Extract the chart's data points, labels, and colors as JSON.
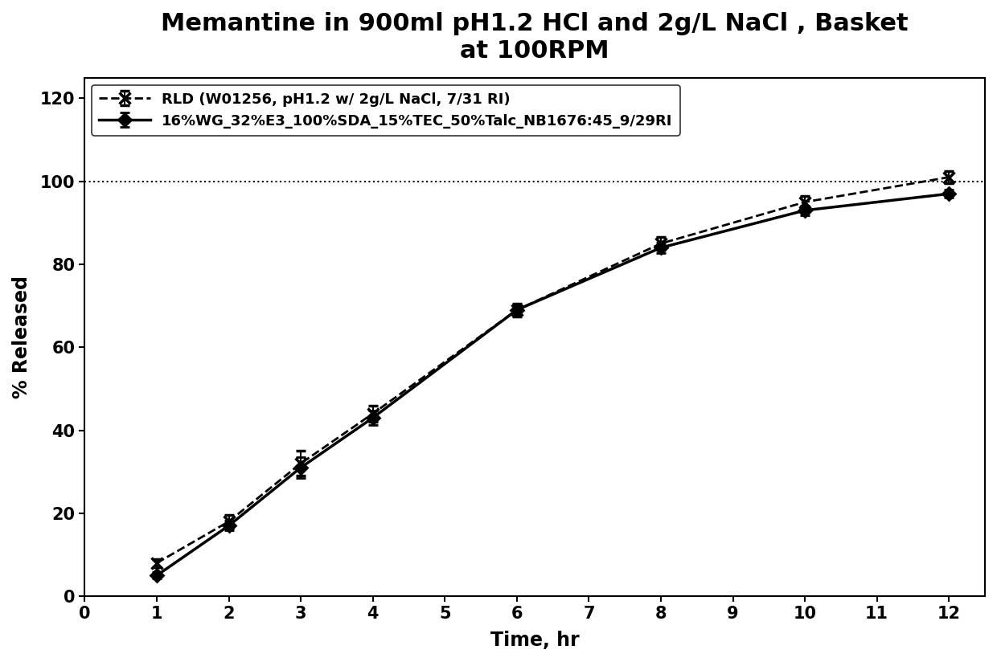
{
  "title": "Memantine in 900ml pH1.2 HCl and 2g/L NaCl , Basket\nat 100RPM",
  "xlabel": "Time, hr",
  "ylabel": "% Released",
  "xlim": [
    0,
    12.5
  ],
  "ylim": [
    0,
    125
  ],
  "xticks": [
    0,
    1,
    2,
    3,
    4,
    5,
    6,
    7,
    8,
    9,
    10,
    11,
    12
  ],
  "yticks": [
    0,
    20,
    40,
    60,
    80,
    100,
    120
  ],
  "series1": {
    "label": "RLD (W01256, pH1.2 w/ 2g/L NaCl, 7/31 RI)",
    "x": [
      1,
      2,
      3,
      4,
      6,
      8,
      10,
      12
    ],
    "y": [
      8,
      18,
      32,
      44,
      69,
      85,
      95,
      101
    ],
    "yerr": [
      1.0,
      1.5,
      3.0,
      2.0,
      1.5,
      1.5,
      1.5,
      1.5
    ],
    "color": "#000000",
    "linestyle": "dashed",
    "linewidth": 2.0,
    "marker": "x",
    "markersize": 10,
    "markeredgewidth": 2.5
  },
  "series2": {
    "label": "16%WG_32%E3_100%SDA_15%TEC_50%Talc_NB1676:45_9/29RI",
    "x": [
      1,
      2,
      3,
      4,
      6,
      8,
      10,
      12
    ],
    "y": [
      5,
      17,
      31,
      43,
      69,
      84,
      93,
      97
    ],
    "yerr": [
      0.8,
      1.2,
      2.5,
      1.8,
      1.2,
      1.2,
      1.2,
      1.0
    ],
    "color": "#000000",
    "linestyle": "solid",
    "linewidth": 2.5,
    "marker": "D",
    "markersize": 8,
    "markeredgewidth": 2.0
  },
  "ref_line_y": 100,
  "title_fontsize": 22,
  "label_fontsize": 17,
  "tick_fontsize": 15,
  "legend_fontsize": 13,
  "background_color": "#ffffff",
  "figure_width": 12.4,
  "figure_height": 8.24,
  "dpi": 100
}
